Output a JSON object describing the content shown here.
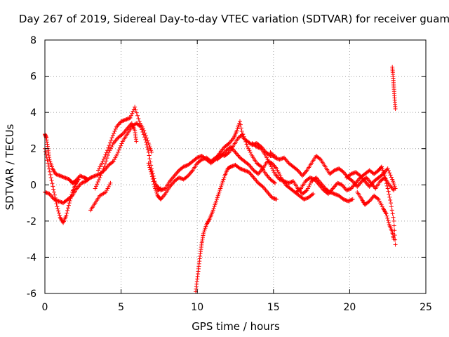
{
  "chart_data": {
    "type": "scatter",
    "title": "Day 267 of 2019, Sidereal Day-to-day VTEC variation (SDTVAR) for receiver guam",
    "xlabel": "GPS time / hours",
    "ylabel": "SDTVAR / TECUs",
    "xlim": [
      0,
      25
    ],
    "ylim": [
      -6,
      8
    ],
    "xticks": [
      "0",
      "5",
      "10",
      "15",
      "20",
      "25"
    ],
    "yticks": [
      "-6",
      "-4",
      "-2",
      "0",
      "2",
      "4",
      "6",
      "8"
    ],
    "grid": true,
    "marker": "+",
    "color": "#ff0000",
    "series": [
      {
        "name": "trace-a",
        "points": [
          [
            0.0,
            2.8
          ],
          [
            0.1,
            2.6
          ],
          [
            0.2,
            2.0
          ],
          [
            0.3,
            1.4
          ],
          [
            0.5,
            0.9
          ],
          [
            0.7,
            0.6
          ],
          [
            1.0,
            0.5
          ],
          [
            1.3,
            0.4
          ],
          [
            1.6,
            0.3
          ],
          [
            1.8,
            0.1
          ],
          [
            2.0,
            0.2
          ],
          [
            2.3,
            0.5
          ],
          [
            2.6,
            0.4
          ],
          [
            2.8,
            0.3
          ]
        ]
      },
      {
        "name": "trace-b",
        "points": [
          [
            0.0,
            2.0
          ],
          [
            0.2,
            1.2
          ],
          [
            0.4,
            0.4
          ],
          [
            0.6,
            -0.4
          ],
          [
            0.8,
            -1.2
          ],
          [
            1.0,
            -1.8
          ],
          [
            1.2,
            -2.1
          ],
          [
            1.4,
            -1.7
          ],
          [
            1.6,
            -1.0
          ],
          [
            1.8,
            -0.4
          ],
          [
            2.0,
            0.0
          ],
          [
            2.2,
            0.3
          ]
        ]
      },
      {
        "name": "trace-c",
        "points": [
          [
            0.0,
            -0.4
          ],
          [
            0.3,
            -0.5
          ],
          [
            0.6,
            -0.8
          ],
          [
            0.9,
            -0.9
          ],
          [
            1.2,
            -1.0
          ],
          [
            1.5,
            -0.8
          ],
          [
            1.8,
            -0.6
          ],
          [
            2.1,
            -0.2
          ],
          [
            2.4,
            0.1
          ],
          [
            2.7,
            0.2
          ],
          [
            3.0,
            0.4
          ],
          [
            3.3,
            0.5
          ],
          [
            3.6,
            0.6
          ],
          [
            3.9,
            0.8
          ],
          [
            4.2,
            1.1
          ],
          [
            4.5,
            1.3
          ],
          [
            4.8,
            1.8
          ],
          [
            5.1,
            2.4
          ],
          [
            5.4,
            2.8
          ],
          [
            5.7,
            3.2
          ],
          [
            6.0,
            3.4
          ],
          [
            6.3,
            3.2
          ],
          [
            6.6,
            2.5
          ],
          [
            6.8,
            1.8
          ],
          [
            7.0,
            0.9
          ],
          [
            7.2,
            0.2
          ],
          [
            7.4,
            -0.3
          ],
          [
            7.6,
            -0.2
          ]
        ]
      },
      {
        "name": "trace-d",
        "points": [
          [
            3.5,
            0.8
          ],
          [
            3.8,
            1.3
          ],
          [
            4.1,
            1.9
          ],
          [
            4.4,
            2.6
          ],
          [
            4.7,
            3.2
          ],
          [
            5.0,
            3.5
          ],
          [
            5.3,
            3.6
          ],
          [
            5.6,
            3.7
          ],
          [
            5.9,
            4.3
          ],
          [
            6.2,
            3.5
          ],
          [
            6.5,
            3.0
          ],
          [
            6.8,
            2.3
          ],
          [
            7.0,
            1.8
          ]
        ]
      },
      {
        "name": "trace-e",
        "points": [
          [
            3.3,
            -0.2
          ],
          [
            3.6,
            0.4
          ],
          [
            3.9,
            1.0
          ],
          [
            4.2,
            1.8
          ],
          [
            4.5,
            2.3
          ],
          [
            4.8,
            2.6
          ],
          [
            5.1,
            2.8
          ],
          [
            5.4,
            3.1
          ],
          [
            5.7,
            3.4
          ],
          [
            5.9,
            3.0
          ],
          [
            6.0,
            2.4
          ]
        ]
      },
      {
        "name": "trace-f",
        "points": [
          [
            6.8,
            1.2
          ],
          [
            7.0,
            0.6
          ],
          [
            7.2,
            -0.1
          ],
          [
            7.4,
            -0.6
          ],
          [
            7.6,
            -0.8
          ],
          [
            7.9,
            -0.5
          ],
          [
            8.2,
            -0.1
          ],
          [
            8.5,
            0.2
          ],
          [
            8.8,
            0.4
          ],
          [
            9.1,
            0.3
          ],
          [
            9.4,
            0.5
          ],
          [
            9.7,
            0.8
          ],
          [
            10.0,
            1.2
          ],
          [
            10.3,
            1.4
          ],
          [
            10.6,
            1.5
          ],
          [
            10.9,
            1.3
          ],
          [
            11.2,
            1.5
          ],
          [
            11.5,
            1.7
          ],
          [
            11.8,
            1.6
          ],
          [
            12.1,
            1.8
          ],
          [
            12.4,
            2.2
          ],
          [
            12.7,
            2.6
          ],
          [
            13.0,
            2.8
          ],
          [
            13.3,
            2.1
          ],
          [
            13.6,
            1.6
          ],
          [
            13.9,
            1.2
          ],
          [
            14.2,
            1.0
          ],
          [
            14.5,
            0.6
          ],
          [
            14.8,
            0.3
          ],
          [
            15.1,
            0.1
          ]
        ]
      },
      {
        "name": "trace-g",
        "points": [
          [
            7.3,
            0.0
          ],
          [
            7.6,
            -0.3
          ],
          [
            7.9,
            -0.2
          ],
          [
            8.2,
            0.2
          ],
          [
            8.5,
            0.5
          ],
          [
            8.8,
            0.8
          ],
          [
            9.1,
            1.0
          ],
          [
            9.4,
            1.1
          ],
          [
            9.7,
            1.3
          ],
          [
            10.0,
            1.5
          ],
          [
            10.3,
            1.6
          ],
          [
            10.6,
            1.4
          ],
          [
            10.9,
            1.2
          ],
          [
            11.2,
            1.4
          ],
          [
            11.5,
            1.8
          ],
          [
            11.8,
            2.1
          ],
          [
            12.1,
            2.3
          ],
          [
            12.4,
            2.6
          ],
          [
            12.6,
            3.0
          ],
          [
            12.8,
            3.5
          ],
          [
            13.0,
            2.6
          ],
          [
            13.3,
            2.4
          ],
          [
            13.6,
            2.2
          ],
          [
            13.9,
            2.3
          ],
          [
            14.2,
            2.1
          ],
          [
            14.5,
            1.8
          ],
          [
            14.8,
            1.6
          ],
          [
            15.1,
            1.6
          ]
        ]
      },
      {
        "name": "trace-h",
        "points": [
          [
            9.9,
            -5.9
          ],
          [
            10.0,
            -5.2
          ],
          [
            10.1,
            -4.5
          ],
          [
            10.2,
            -3.8
          ],
          [
            10.3,
            -3.2
          ],
          [
            10.4,
            -2.7
          ],
          [
            10.6,
            -2.2
          ],
          [
            10.8,
            -1.9
          ],
          [
            11.0,
            -1.5
          ],
          [
            11.2,
            -1.0
          ],
          [
            11.4,
            -0.5
          ],
          [
            11.6,
            0.0
          ],
          [
            11.8,
            0.5
          ],
          [
            12.0,
            0.9
          ],
          [
            12.2,
            1.0
          ],
          [
            12.5,
            1.1
          ],
          [
            12.8,
            0.9
          ],
          [
            13.1,
            0.8
          ],
          [
            13.4,
            0.7
          ],
          [
            13.7,
            0.4
          ],
          [
            14.0,
            0.1
          ],
          [
            14.3,
            -0.1
          ],
          [
            14.6,
            -0.4
          ],
          [
            14.9,
            -0.7
          ],
          [
            15.2,
            -0.8
          ]
        ]
      },
      {
        "name": "trace-i",
        "points": [
          [
            11.3,
            1.4
          ],
          [
            11.6,
            1.6
          ],
          [
            11.9,
            1.9
          ],
          [
            12.2,
            2.1
          ],
          [
            12.5,
            1.8
          ],
          [
            12.8,
            1.5
          ],
          [
            13.1,
            1.3
          ],
          [
            13.4,
            1.1
          ],
          [
            13.7,
            0.8
          ],
          [
            14.0,
            0.6
          ],
          [
            14.3,
            0.9
          ],
          [
            14.6,
            1.3
          ],
          [
            14.9,
            1.2
          ],
          [
            15.2,
            0.9
          ],
          [
            15.5,
            0.4
          ],
          [
            15.8,
            0.0
          ],
          [
            16.1,
            -0.2
          ],
          [
            16.4,
            -0.4
          ],
          [
            16.7,
            -0.6
          ],
          [
            17.0,
            -0.8
          ],
          [
            17.3,
            -0.7
          ],
          [
            17.6,
            -0.5
          ]
        ]
      },
      {
        "name": "trace-j",
        "points": [
          [
            13.6,
            2.3
          ],
          [
            13.9,
            2.1
          ],
          [
            14.2,
            2.0
          ],
          [
            14.5,
            1.6
          ],
          [
            14.8,
            1.1
          ],
          [
            15.1,
            0.6
          ],
          [
            15.4,
            0.3
          ],
          [
            15.7,
            0.2
          ],
          [
            16.0,
            0.1
          ],
          [
            16.3,
            0.2
          ],
          [
            16.6,
            -0.2
          ],
          [
            16.9,
            -0.5
          ],
          [
            17.2,
            -0.3
          ],
          [
            17.5,
            0.2
          ],
          [
            17.8,
            0.4
          ],
          [
            18.1,
            0.1
          ],
          [
            18.4,
            -0.2
          ],
          [
            18.7,
            -0.4
          ],
          [
            19.0,
            -0.5
          ],
          [
            19.3,
            -0.6
          ],
          [
            19.6,
            -0.8
          ],
          [
            19.9,
            -0.9
          ],
          [
            20.2,
            -0.8
          ]
        ]
      },
      {
        "name": "trace-k",
        "points": [
          [
            14.8,
            1.8
          ],
          [
            15.1,
            1.5
          ],
          [
            15.4,
            1.4
          ],
          [
            15.7,
            1.5
          ],
          [
            16.0,
            1.2
          ],
          [
            16.3,
            1.0
          ],
          [
            16.6,
            0.8
          ],
          [
            16.9,
            0.5
          ],
          [
            17.2,
            0.8
          ],
          [
            17.5,
            1.2
          ],
          [
            17.8,
            1.6
          ],
          [
            18.1,
            1.4
          ],
          [
            18.4,
            1.0
          ],
          [
            18.7,
            0.6
          ],
          [
            19.0,
            0.8
          ],
          [
            19.3,
            0.9
          ],
          [
            19.6,
            0.7
          ],
          [
            19.9,
            0.4
          ],
          [
            20.2,
            0.2
          ],
          [
            20.5,
            -0.1
          ],
          [
            20.8,
            0.2
          ],
          [
            21.1,
            0.4
          ],
          [
            21.4,
            0.1
          ],
          [
            21.7,
            -0.2
          ],
          [
            22.0,
            0.2
          ],
          [
            22.3,
            0.4
          ],
          [
            22.6,
            0.0
          ],
          [
            22.9,
            -0.3
          ]
        ]
      },
      {
        "name": "trace-l",
        "points": [
          [
            16.5,
            -0.4
          ],
          [
            16.8,
            -0.2
          ],
          [
            17.1,
            0.2
          ],
          [
            17.4,
            0.4
          ],
          [
            17.7,
            0.3
          ],
          [
            18.0,
            0.0
          ],
          [
            18.3,
            -0.3
          ],
          [
            18.6,
            -0.5
          ],
          [
            18.9,
            -0.2
          ],
          [
            19.2,
            0.1
          ],
          [
            19.5,
            0.0
          ],
          [
            19.8,
            -0.3
          ],
          [
            20.1,
            -0.2
          ],
          [
            20.4,
            0.1
          ],
          [
            20.7,
            0.4
          ],
          [
            21.0,
            0.6
          ],
          [
            21.3,
            0.8
          ],
          [
            21.6,
            0.6
          ],
          [
            21.9,
            0.8
          ],
          [
            22.1,
            1.0
          ],
          [
            22.3,
            0.5
          ],
          [
            22.5,
            -0.2
          ],
          [
            22.7,
            -1.0
          ],
          [
            22.9,
            -2.0
          ],
          [
            23.0,
            -3.3
          ]
        ]
      },
      {
        "name": "trace-m",
        "points": [
          [
            20.5,
            -0.4
          ],
          [
            20.8,
            -0.8
          ],
          [
            21.0,
            -1.1
          ],
          [
            21.3,
            -0.9
          ],
          [
            21.6,
            -0.6
          ],
          [
            21.9,
            -0.8
          ],
          [
            22.2,
            -1.3
          ],
          [
            22.4,
            -1.6
          ],
          [
            22.6,
            -2.2
          ],
          [
            22.8,
            -2.6
          ],
          [
            22.9,
            -3.0
          ]
        ]
      },
      {
        "name": "trace-n",
        "points": [
          [
            19.8,
            0.4
          ],
          [
            20.1,
            0.6
          ],
          [
            20.4,
            0.7
          ],
          [
            20.7,
            0.5
          ],
          [
            21.0,
            0.2
          ],
          [
            21.3,
            -0.1
          ],
          [
            21.6,
            0.2
          ],
          [
            21.9,
            0.4
          ],
          [
            22.2,
            0.6
          ],
          [
            22.5,
            0.9
          ],
          [
            22.8,
            0.3
          ],
          [
            23.0,
            -0.2
          ]
        ]
      },
      {
        "name": "trace-o",
        "points": [
          [
            22.8,
            6.5
          ],
          [
            22.85,
            6.0
          ],
          [
            22.9,
            5.4
          ],
          [
            22.95,
            4.8
          ],
          [
            23.0,
            4.2
          ]
        ]
      },
      {
        "name": "trace-p",
        "points": [
          [
            3.0,
            -1.4
          ],
          [
            3.3,
            -1.0
          ],
          [
            3.6,
            -0.6
          ],
          [
            4.0,
            -0.4
          ],
          [
            4.3,
            0.1
          ]
        ]
      }
    ]
  }
}
